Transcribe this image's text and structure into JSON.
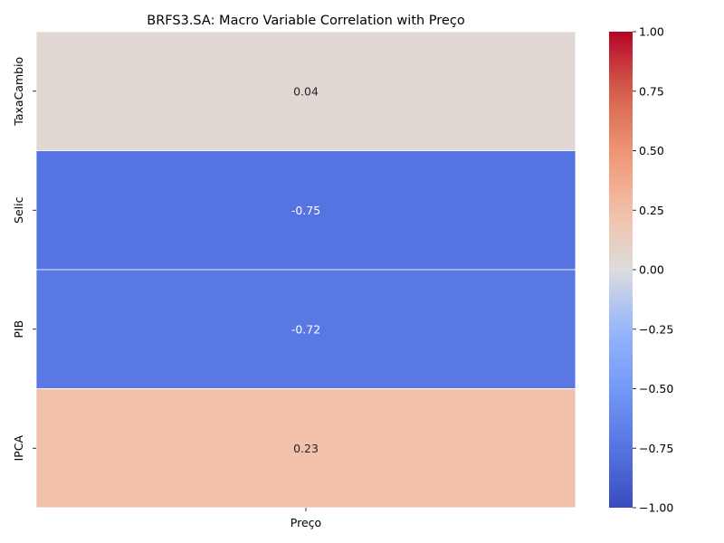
{
  "chart_data": {
    "type": "heatmap",
    "title": "BRFS3.SA: Macro Variable Correlation with Preço",
    "columns": [
      "Preço"
    ],
    "rows": [
      "TaxaCambio",
      "Selic",
      "PIB",
      "IPCA"
    ],
    "values": [
      [
        0.04
      ],
      [
        -0.75
      ],
      [
        -0.72
      ],
      [
        0.23
      ]
    ],
    "annotations": [
      "0.04",
      "-0.75",
      "-0.72",
      "0.23"
    ],
    "colormap": "coolwarm",
    "vmin": -1.0,
    "vmax": 1.0,
    "colorbar_ticks": [
      1.0,
      0.75,
      0.5,
      0.25,
      0.0,
      -0.25,
      -0.5,
      -0.75,
      -1.0
    ],
    "colorbar_tick_labels": [
      "1.00",
      "0.75",
      "0.50",
      "0.25",
      "0.00",
      "−0.25",
      "−0.50",
      "−0.75",
      "−1.00"
    ]
  }
}
